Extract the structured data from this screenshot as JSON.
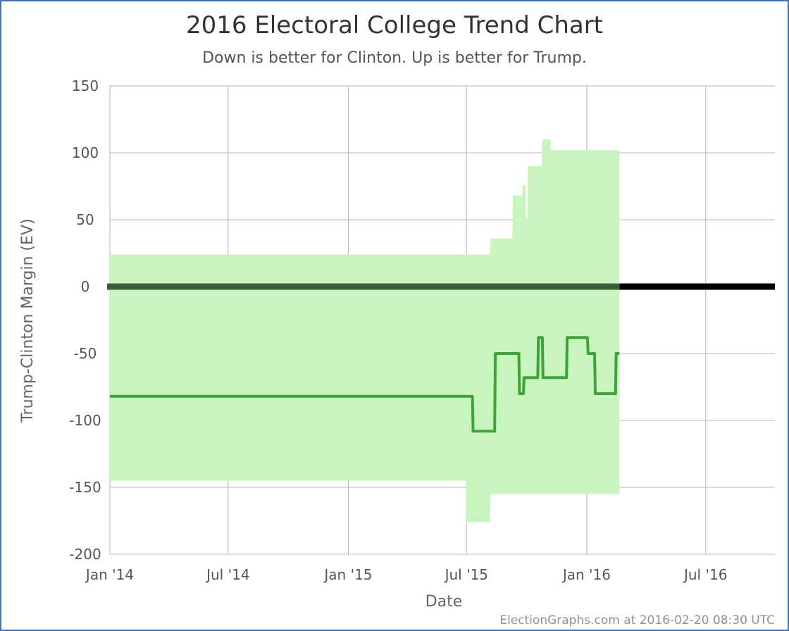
{
  "chart_data": {
    "type": "area",
    "title": "2016 Electoral College Trend Chart",
    "subtitle": "Down is better for Clinton. Up is better for Trump.",
    "xlabel": "Date",
    "ylabel": "Trump-Clinton Margin (EV)",
    "credit": "ElectionGraphs.com at 2016-02-20 08:30 UTC",
    "xlim": [
      "2014-01-01",
      "2016-10-15"
    ],
    "ylim": [
      -200,
      150
    ],
    "x_ticks": [
      {
        "date": "2014-01-01",
        "label": "Jan '14"
      },
      {
        "date": "2014-07-01",
        "label": "Jul '14"
      },
      {
        "date": "2015-01-01",
        "label": "Jan '15"
      },
      {
        "date": "2015-07-01",
        "label": "Jul '15"
      },
      {
        "date": "2016-01-01",
        "label": "Jan '16"
      },
      {
        "date": "2016-07-01",
        "label": "Jul '16"
      }
    ],
    "y_ticks": [
      150,
      100,
      50,
      0,
      -50,
      -100,
      -150,
      -200
    ],
    "grid": true,
    "legend": "none",
    "colors": {
      "band": "#c8f5be",
      "line": "#3fa33a",
      "zero_line": "#000000",
      "zero_line_in_band": "#3d5a3a",
      "grid": "#b8b8b8"
    },
    "range_band": [
      {
        "date": "2014-01-01",
        "upper": 24,
        "lower": -145
      },
      {
        "date": "2015-06-30",
        "upper": 24,
        "lower": -145
      },
      {
        "date": "2015-07-01",
        "upper": 24,
        "lower": -176
      },
      {
        "date": "2015-08-06",
        "upper": 24,
        "lower": -176
      },
      {
        "date": "2015-08-07",
        "upper": 36,
        "lower": -155
      },
      {
        "date": "2015-09-09",
        "upper": 36,
        "lower": -155
      },
      {
        "date": "2015-09-10",
        "upper": 68,
        "lower": -155
      },
      {
        "date": "2015-09-24",
        "upper": 68,
        "lower": -155
      },
      {
        "date": "2015-09-25",
        "upper": 76,
        "lower": -155
      },
      {
        "date": "2015-09-29",
        "upper": 76,
        "lower": -155
      },
      {
        "date": "2015-09-30",
        "upper": 50,
        "lower": -155
      },
      {
        "date": "2015-10-02",
        "upper": 50,
        "lower": -155
      },
      {
        "date": "2015-10-03",
        "upper": 90,
        "lower": -155
      },
      {
        "date": "2015-10-24",
        "upper": 90,
        "lower": -155
      },
      {
        "date": "2015-10-25",
        "upper": 110,
        "lower": -155
      },
      {
        "date": "2015-11-06",
        "upper": 110,
        "lower": -155
      },
      {
        "date": "2015-11-07",
        "upper": 102,
        "lower": -155
      },
      {
        "date": "2016-02-20",
        "upper": 102,
        "lower": -155
      }
    ],
    "series": [
      {
        "values": [
          {
            "date": "2014-01-01",
            "value": -82
          },
          {
            "date": "2015-07-10",
            "value": -82
          },
          {
            "date": "2015-07-11",
            "value": -108
          },
          {
            "date": "2015-08-13",
            "value": -108
          },
          {
            "date": "2015-08-14",
            "value": -50
          },
          {
            "date": "2015-09-19",
            "value": -50
          },
          {
            "date": "2015-09-20",
            "value": -80
          },
          {
            "date": "2015-09-26",
            "value": -80
          },
          {
            "date": "2015-09-27",
            "value": -68
          },
          {
            "date": "2015-10-18",
            "value": -68
          },
          {
            "date": "2015-10-19",
            "value": -38
          },
          {
            "date": "2015-10-25",
            "value": -38
          },
          {
            "date": "2015-10-26",
            "value": -68
          },
          {
            "date": "2015-12-01",
            "value": -68
          },
          {
            "date": "2015-12-02",
            "value": -38
          },
          {
            "date": "2016-01-02",
            "value": -38
          },
          {
            "date": "2016-01-03",
            "value": -50
          },
          {
            "date": "2016-01-13",
            "value": -50
          },
          {
            "date": "2016-01-14",
            "value": -80
          },
          {
            "date": "2016-02-14",
            "value": -80
          },
          {
            "date": "2016-02-15",
            "value": -50
          },
          {
            "date": "2016-02-20",
            "value": -50
          }
        ]
      }
    ]
  }
}
